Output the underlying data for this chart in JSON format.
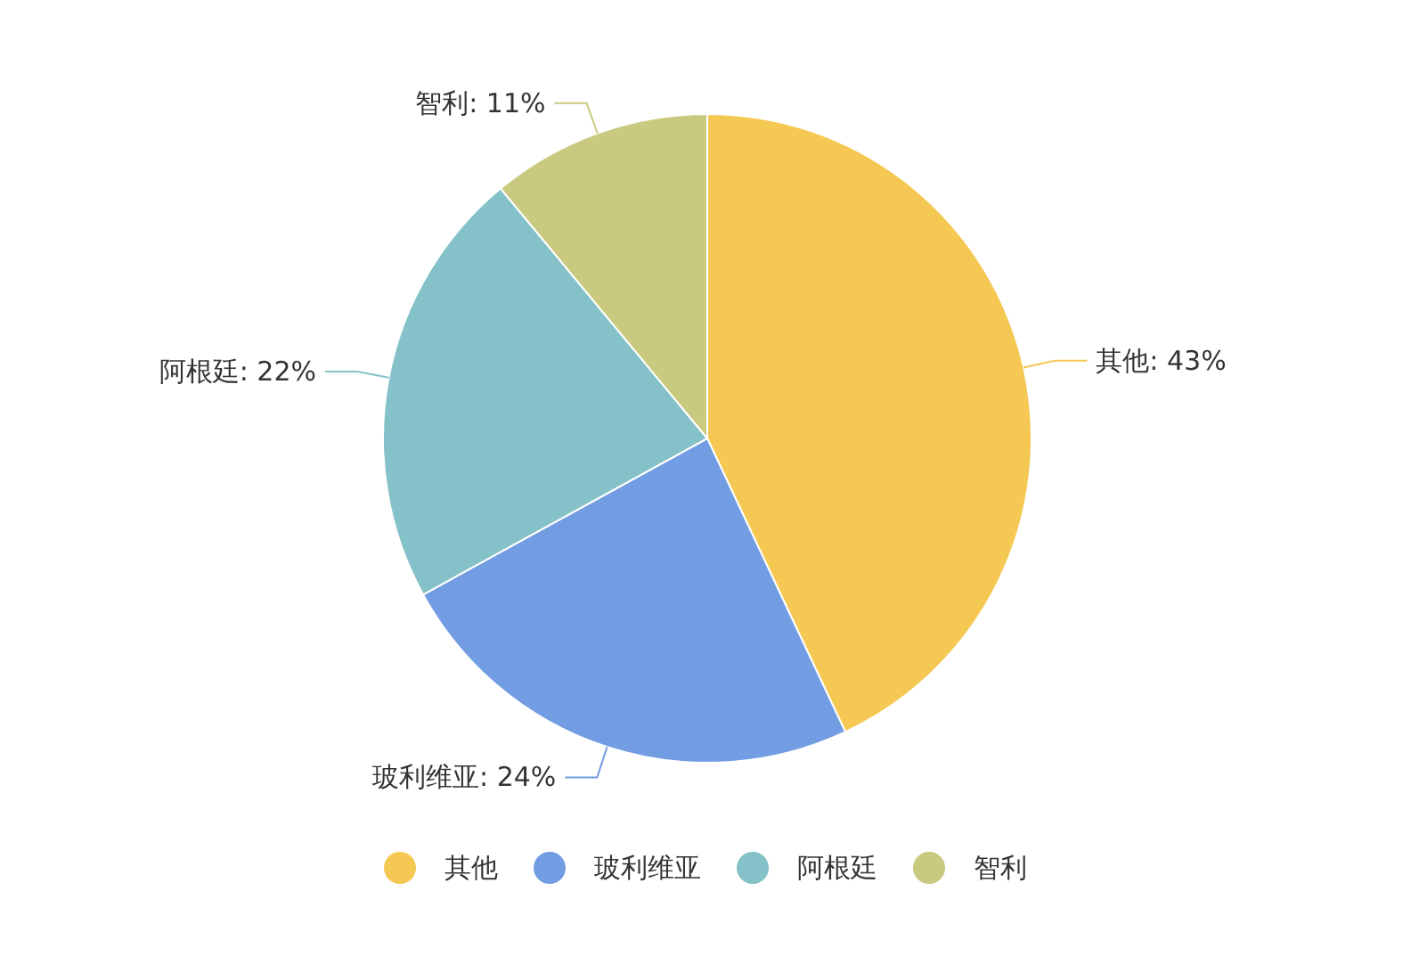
{
  "chart_data": {
    "type": "pie",
    "categories": [
      "其他",
      "玻利维亚",
      "阿根廷",
      "智利"
    ],
    "values": [
      43,
      24,
      22,
      11
    ],
    "colors": [
      "#f4c852",
      "#729de2",
      "#85c1c8",
      "#c9c97f"
    ],
    "value_labels": [
      "其他: 43%",
      "玻利维亚: 24%",
      "阿根廷: 22%",
      "智利: 11%"
    ],
    "legend": "bottom"
  }
}
